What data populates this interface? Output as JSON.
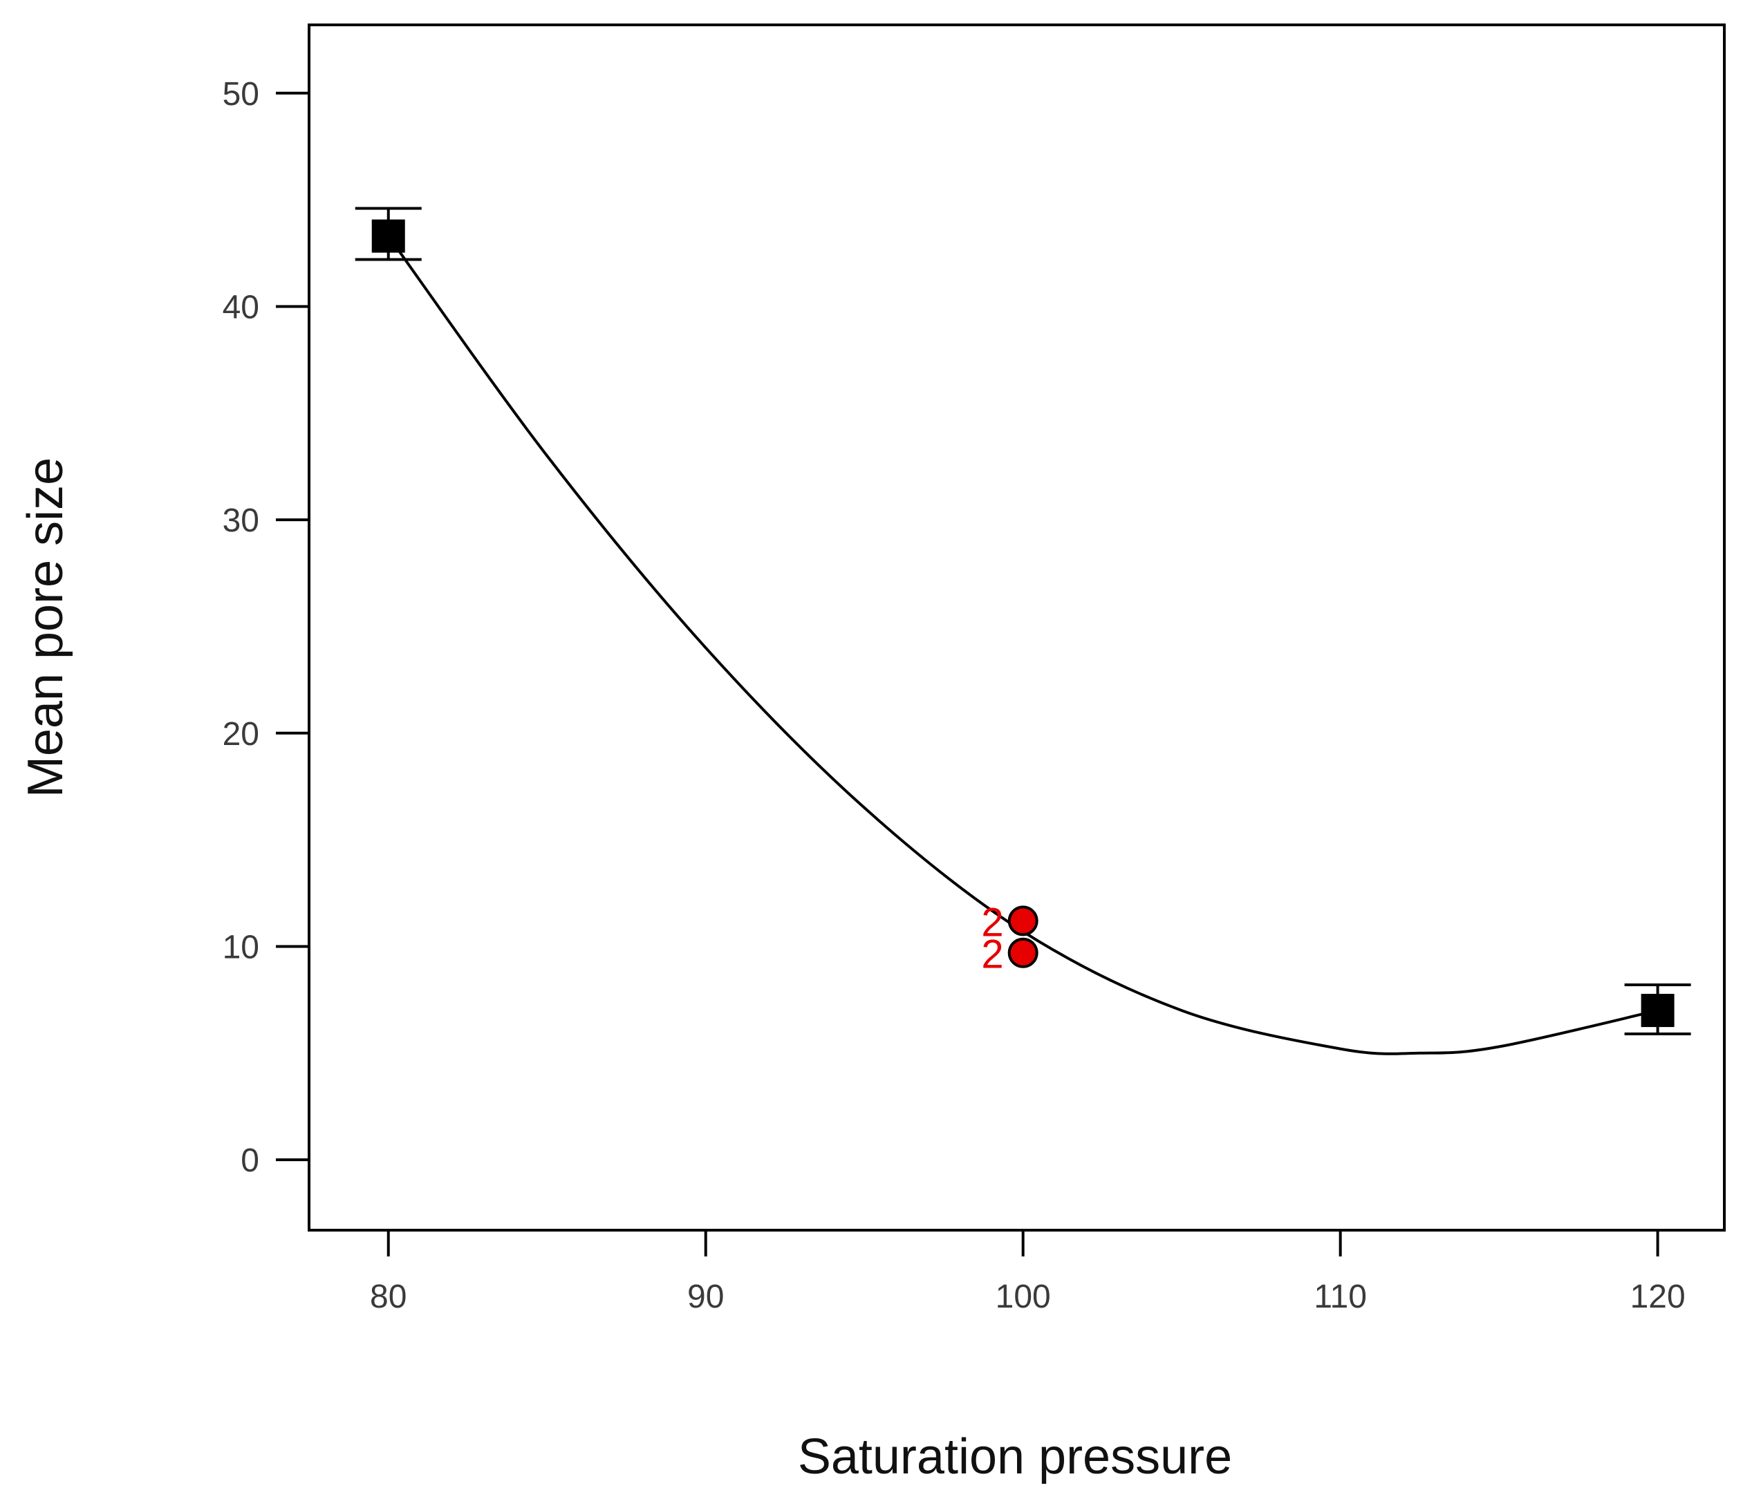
{
  "chart_data": {
    "type": "scatter",
    "title": "",
    "xlabel": "Saturation pressure",
    "ylabel": "Mean pore size",
    "xlim": [
      77.5,
      122.1
    ],
    "ylim": [
      -3.3,
      53.2
    ],
    "x_ticks": [
      80,
      90,
      100,
      110,
      120
    ],
    "y_ticks": [
      0,
      10,
      20,
      30,
      40,
      50
    ],
    "grid": false,
    "legend": "none",
    "design_points": [
      {
        "x": 80,
        "y": 43.3,
        "err_low": 42.2,
        "err_high": 44.6,
        "marker": "square"
      },
      {
        "x": 120,
        "y": 7.0,
        "err_low": 5.9,
        "err_high": 8.2,
        "marker": "square"
      }
    ],
    "center_points": [
      {
        "x": 100,
        "y": 11.2,
        "label": "2"
      },
      {
        "x": 100,
        "y": 9.7,
        "label": "2"
      }
    ],
    "fit_curve": {
      "x": [
        80,
        85,
        90,
        95,
        100,
        105,
        110,
        112.5,
        115,
        120
      ],
      "y": [
        43.3,
        33.0,
        24.0,
        16.5,
        10.7,
        7.0,
        5.2,
        5.0,
        5.3,
        7.0
      ]
    },
    "colors": {
      "design": "#000000",
      "center": "#e60000",
      "curve": "#000000"
    }
  }
}
